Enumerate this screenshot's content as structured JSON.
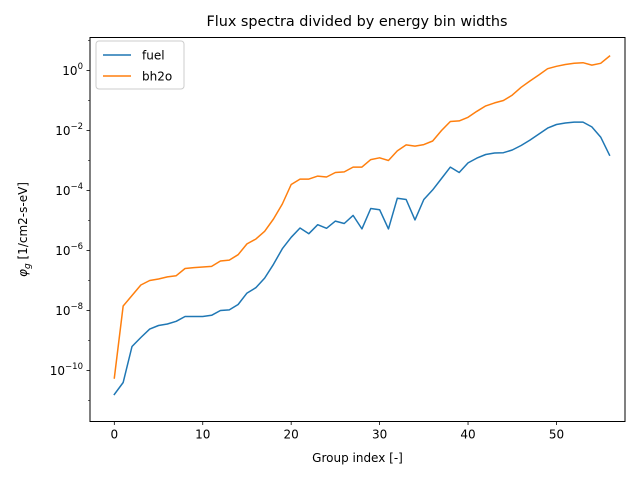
{
  "chart_data": {
    "type": "line",
    "title": "Flux spectra divided by energy bin widths",
    "xlabel": "Group index [-]",
    "ylabel": "φ_g [1/cm2-s-eV]",
    "ylabel_symbol": "φ",
    "ylabel_sub": "g",
    "ylabel_unit": " [1/cm2-s-eV]",
    "yscale": "log",
    "xlim": [
      -2.75,
      57.75
    ],
    "ylim_log10": [
      -11.7,
      1.1
    ],
    "x_ticks": [
      0,
      10,
      20,
      30,
      40,
      50
    ],
    "y_ticks": [
      {
        "exp": -10,
        "base": "10",
        "sup": "−10"
      },
      {
        "exp": -8,
        "base": "10",
        "sup": "−8"
      },
      {
        "exp": -6,
        "base": "10",
        "sup": "−6"
      },
      {
        "exp": -4,
        "base": "10",
        "sup": "−4"
      },
      {
        "exp": -2,
        "base": "10",
        "sup": "−2"
      },
      {
        "exp": 0,
        "base": "10",
        "sup": "0"
      }
    ],
    "grid": false,
    "legend_position": "top-left",
    "series": [
      {
        "name": "fuel",
        "color": "#1f77b4",
        "log10_values": [
          -10.8,
          -10.4,
          -9.2,
          -8.9,
          -8.62,
          -8.5,
          -8.45,
          -8.36,
          -8.2,
          -8.2,
          -8.2,
          -8.16,
          -8.0,
          -7.98,
          -7.8,
          -7.42,
          -7.24,
          -6.92,
          -6.46,
          -5.94,
          -5.56,
          -5.25,
          -5.44,
          -5.14,
          -5.26,
          -5.02,
          -5.1,
          -4.83,
          -5.28,
          -4.6,
          -4.64,
          -5.28,
          -4.26,
          -4.3,
          -4.98,
          -4.3,
          -3.98,
          -3.6,
          -3.22,
          -3.4,
          -3.08,
          -2.92,
          -2.8,
          -2.75,
          -2.74,
          -2.65,
          -2.5,
          -2.32,
          -2.12,
          -1.92,
          -1.8,
          -1.75,
          -1.72,
          -1.72,
          -1.88,
          -2.22,
          -2.82
        ]
      },
      {
        "name": "bh2o",
        "color": "#ff7f0e",
        "log10_values": [
          -10.25,
          -7.85,
          -7.5,
          -7.15,
          -7.0,
          -6.95,
          -6.88,
          -6.84,
          -6.6,
          -6.57,
          -6.55,
          -6.53,
          -6.35,
          -6.32,
          -6.14,
          -5.78,
          -5.62,
          -5.36,
          -4.95,
          -4.45,
          -3.8,
          -3.62,
          -3.62,
          -3.52,
          -3.55,
          -3.4,
          -3.38,
          -3.22,
          -3.22,
          -2.97,
          -2.91,
          -3.0,
          -2.68,
          -2.48,
          -2.52,
          -2.47,
          -2.35,
          -2.0,
          -1.7,
          -1.68,
          -1.56,
          -1.36,
          -1.18,
          -1.08,
          -1.0,
          -0.82,
          -0.56,
          -0.35,
          -0.15,
          0.06,
          0.14,
          0.2,
          0.24,
          0.26,
          0.18,
          0.24,
          0.48
        ]
      }
    ]
  }
}
